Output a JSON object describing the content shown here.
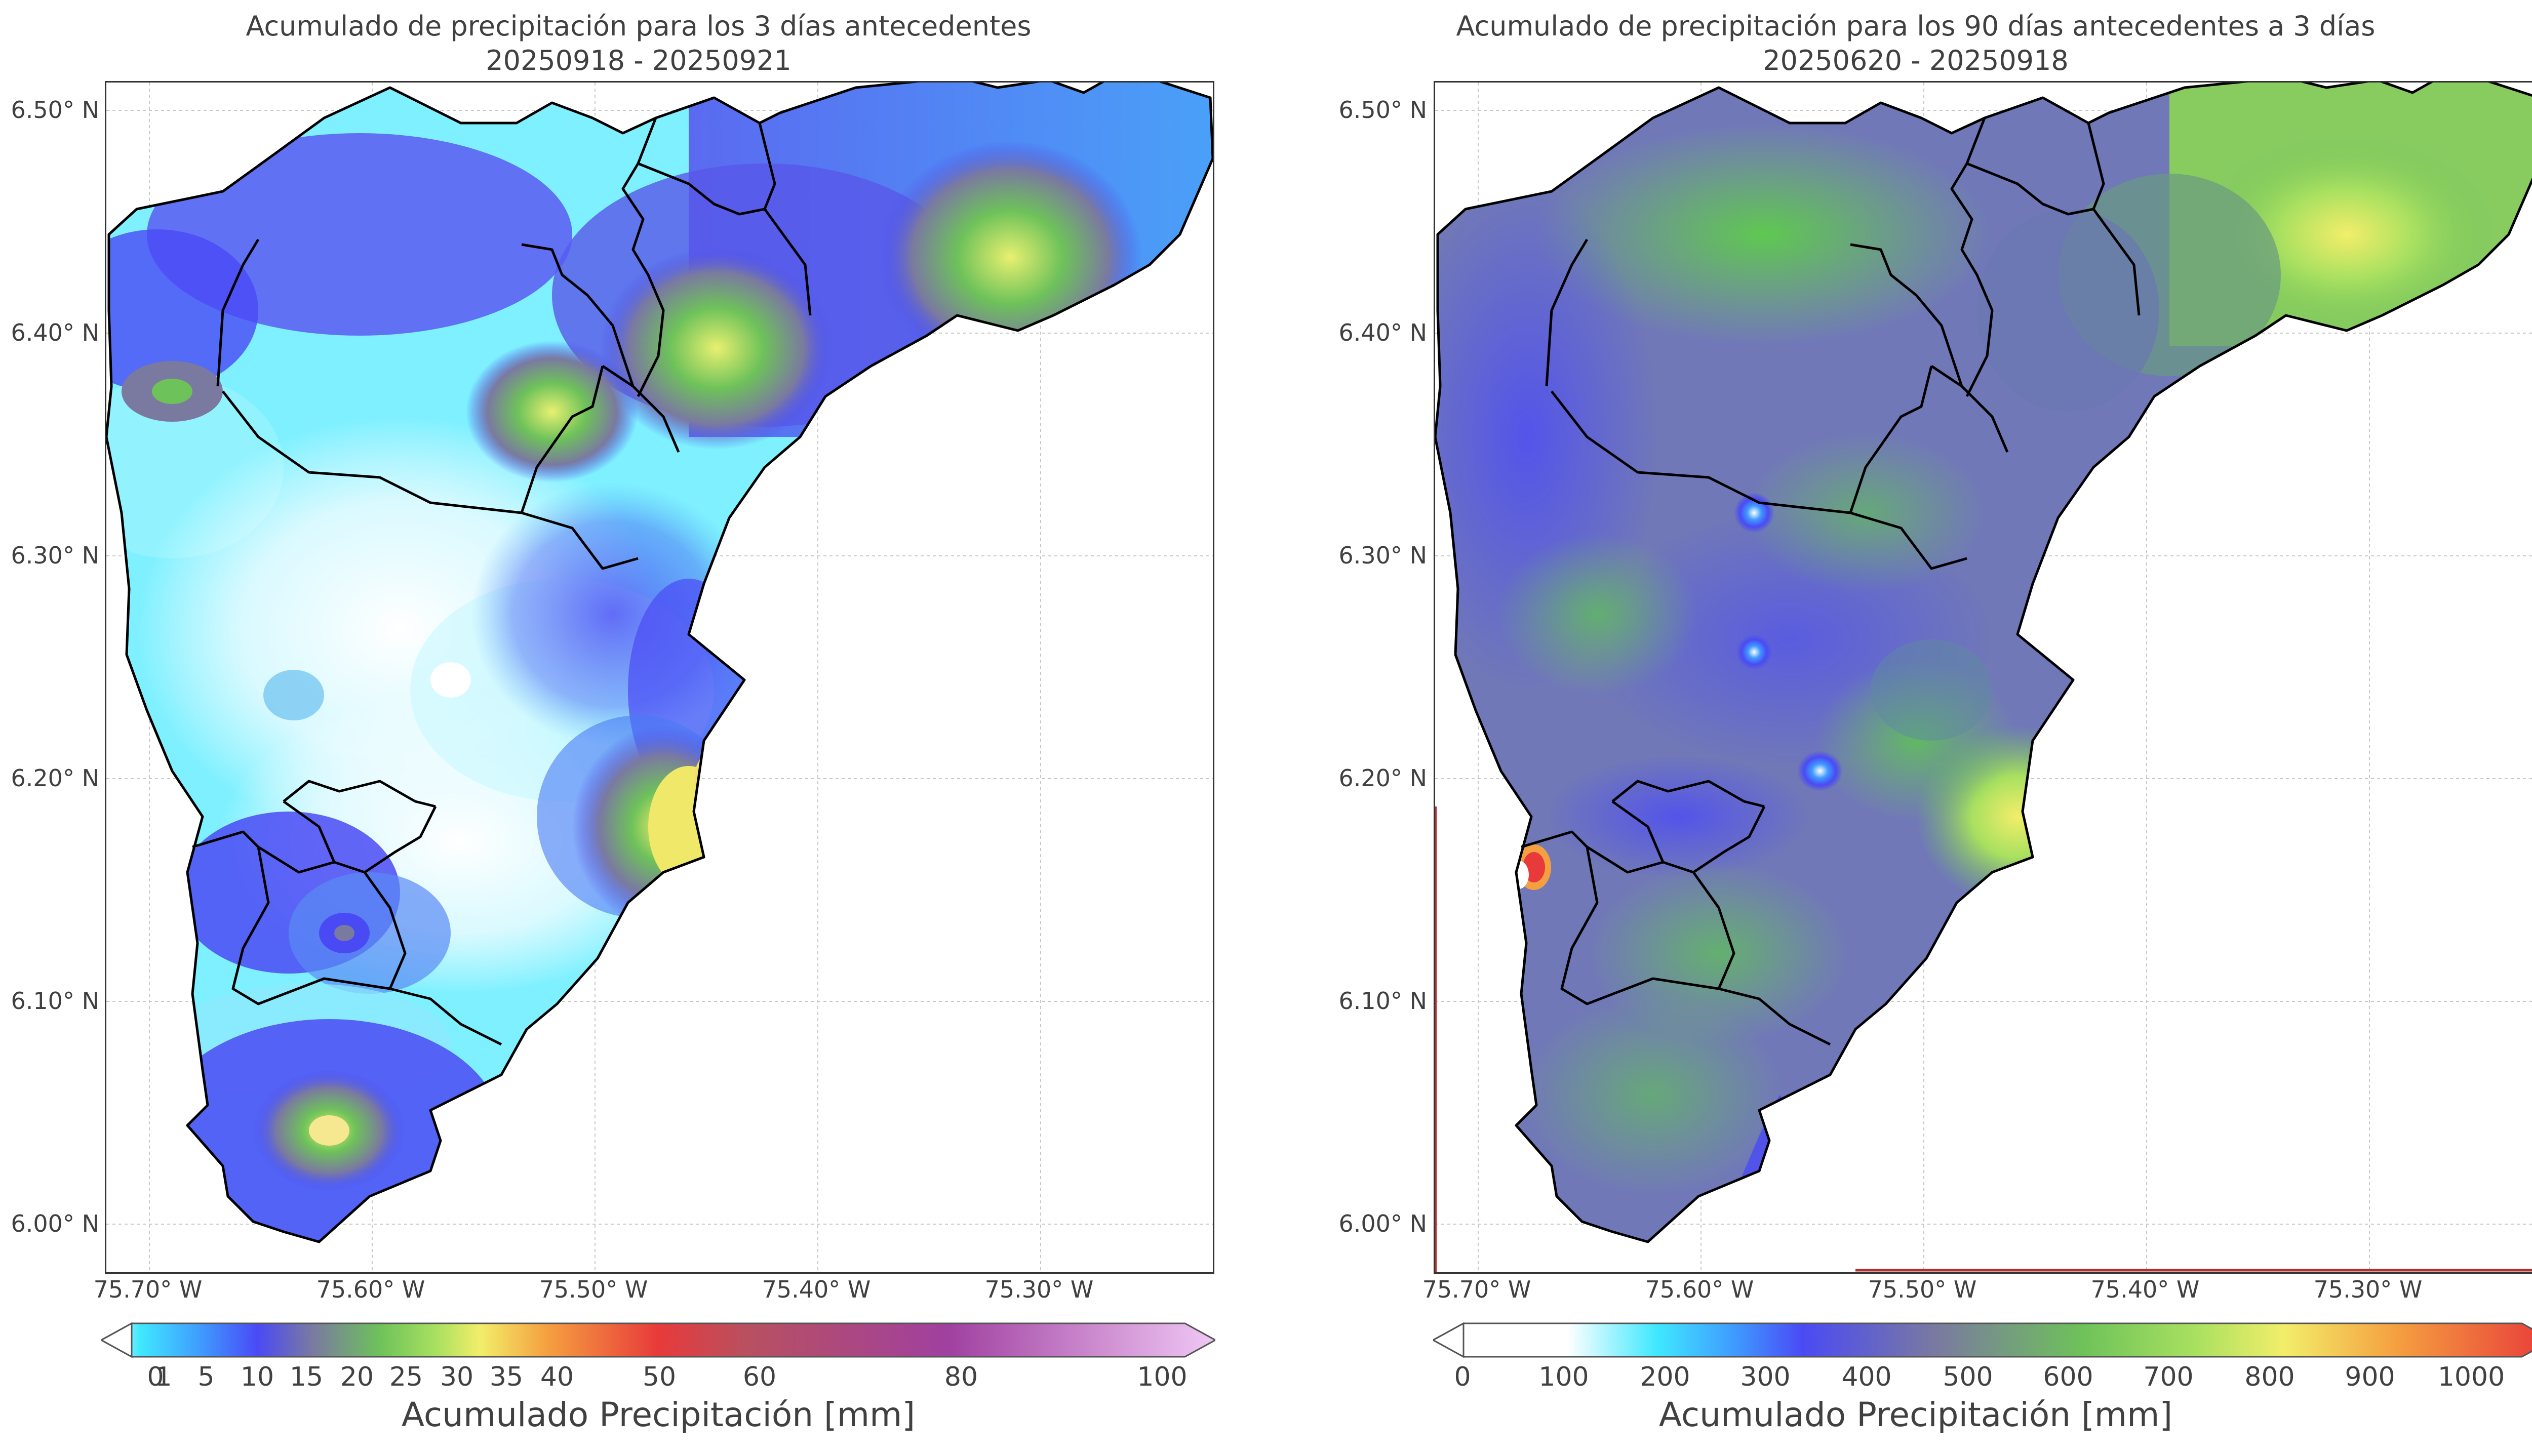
{
  "panels": [
    {
      "title": "Acumulado de precipitación para los 3 días antecedentes",
      "subtitle": "20250918 - 20250921",
      "y_ticks": [
        "6.50° N",
        "6.40° N",
        "6.30° N",
        "6.20° N",
        "6.10° N",
        "6.00° N"
      ],
      "x_ticks": [
        "75.70° W",
        "75.60° W",
        "75.50° W",
        "75.40° W",
        "75.30° W"
      ],
      "colorbar_ticks": [
        "0",
        "1",
        "5",
        "10",
        "15",
        "20",
        "25",
        "30",
        "35",
        "40",
        "50",
        "60",
        "80",
        "100"
      ],
      "colorbar_label": "Acumulado Precipitación [mm]"
    },
    {
      "title": "Acumulado de precipitación para los 90 días antecedentes a 3 días",
      "subtitle": "20250620 - 20250918",
      "y_ticks": [
        "6.50° N",
        "6.40° N",
        "6.30° N",
        "6.20° N",
        "6.10° N",
        "6.00° N"
      ],
      "x_ticks": [
        "75.70° W",
        "75.60° W",
        "75.50° W",
        "75.40° W",
        "75.30° W"
      ],
      "colorbar_ticks": [
        "0",
        "100",
        "200",
        "300",
        "400",
        "500",
        "600",
        "700",
        "800",
        "900",
        "1000"
      ],
      "colorbar_label": "Acumulado Precipitación [mm]"
    }
  ],
  "colors": {
    "low": "#ffffff",
    "cyan": "#3fe8ff",
    "blue": "#4a4af5",
    "slate": "#7a7aa0",
    "green": "#6ec25a",
    "yellow": "#f2ee6a",
    "orange": "#f5a040",
    "red": "#e83a3a",
    "purple": "#a040a0",
    "pink": "#f0c8f5"
  }
}
